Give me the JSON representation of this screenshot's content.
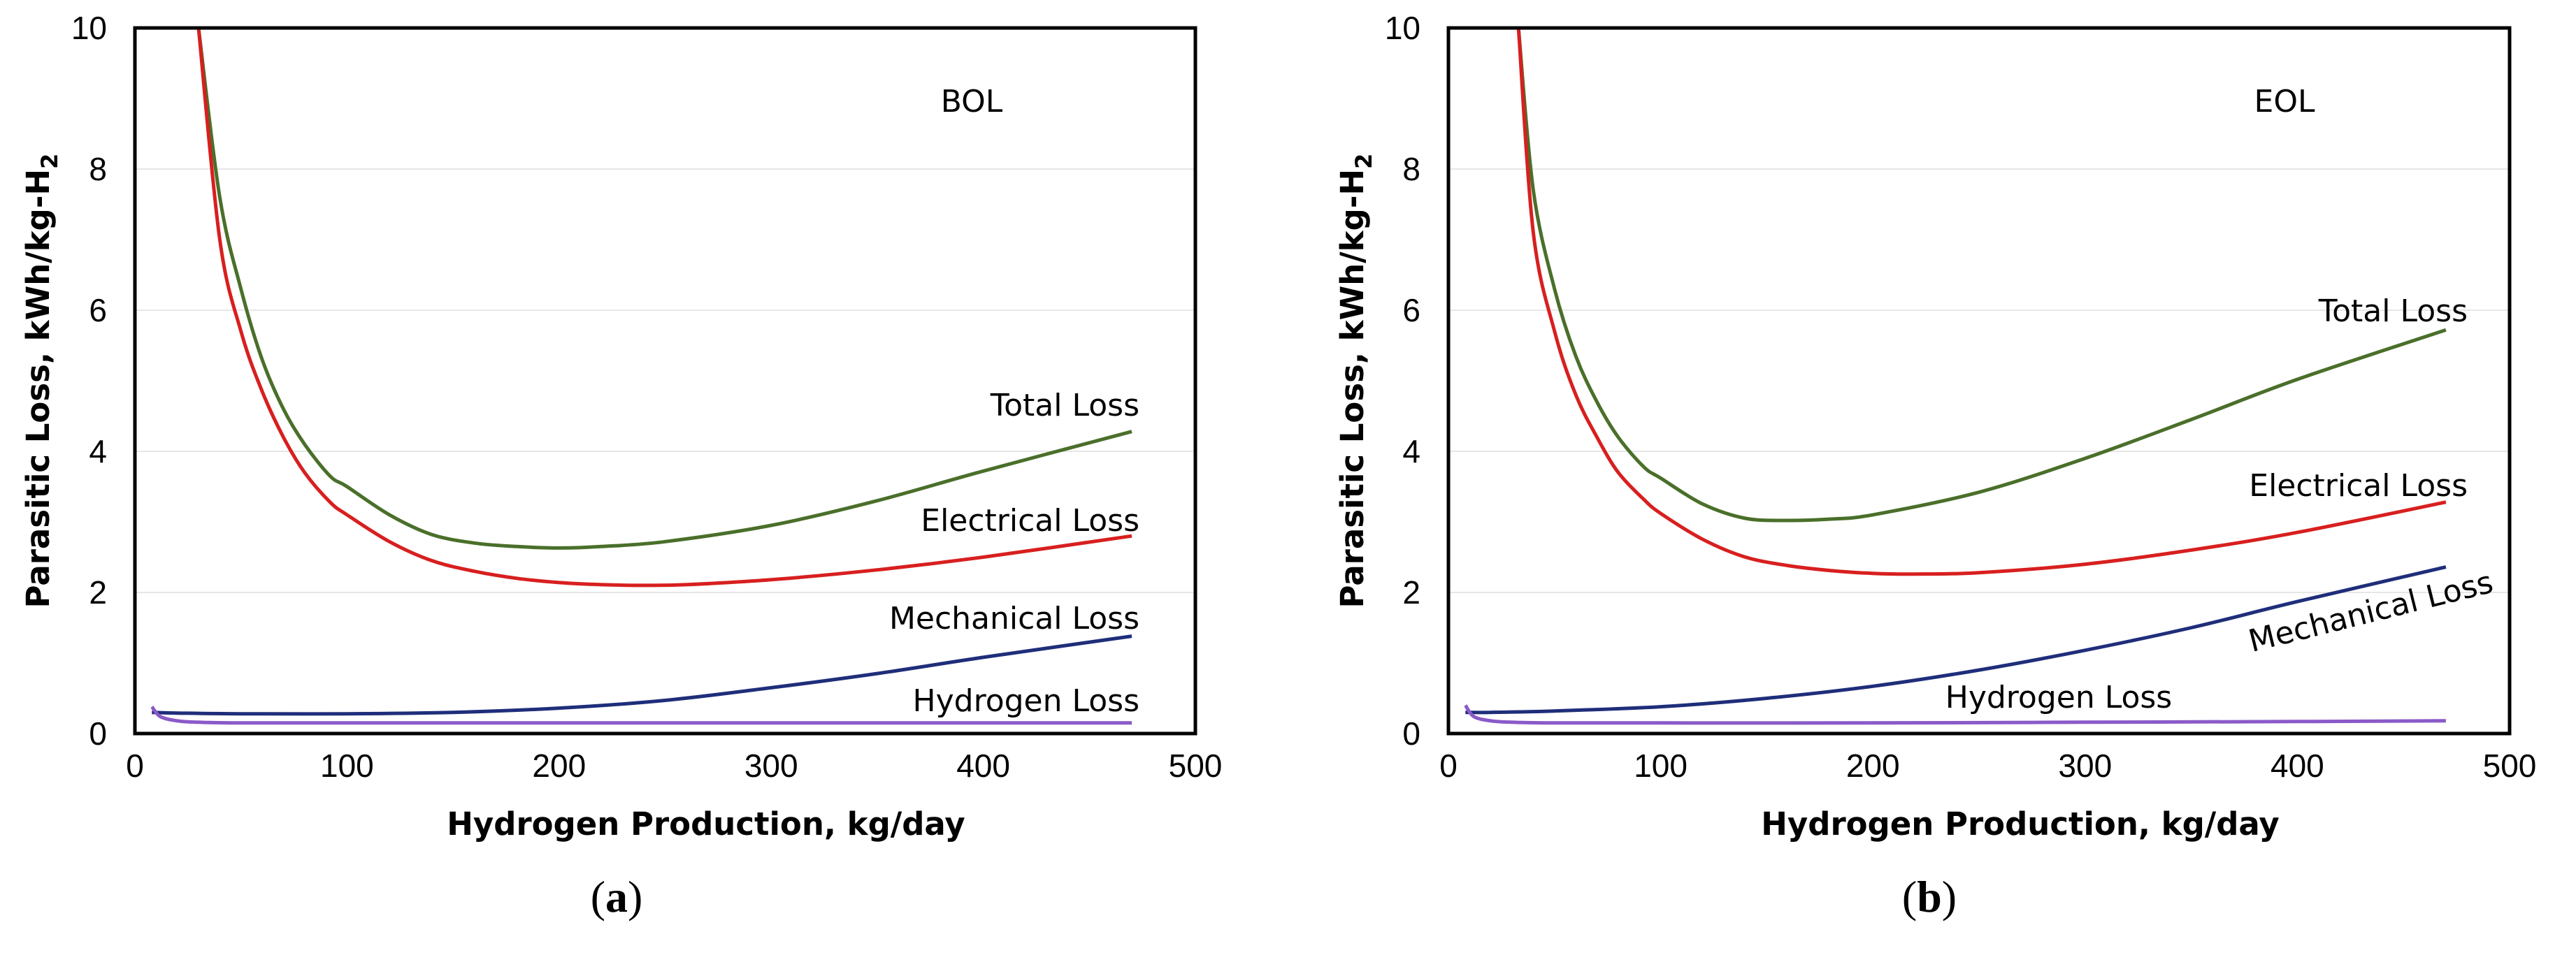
{
  "chart_data": [
    {
      "type": "line",
      "panel_label": "a",
      "stage_label": "BOL",
      "xlabel": "Hydrogen Production, kg/day",
      "ylabel": "Parasitic Loss, kWh/kg-H",
      "ylabel_subscript": "2",
      "xlim": [
        0,
        500
      ],
      "ylim": [
        0,
        10
      ],
      "xticks": [
        0,
        100,
        200,
        300,
        400,
        500
      ],
      "yticks": [
        0,
        2,
        4,
        6,
        8,
        10
      ],
      "grid": "horizontal",
      "series": [
        {
          "name": "Total Loss",
          "color": "#4a6f2a",
          "x": [
            30,
            40,
            50,
            60,
            70,
            80,
            92,
            100,
            120,
            140,
            160,
            180,
            200,
            220,
            250,
            300,
            350,
            400,
            470
          ],
          "y": [
            10.0,
            7.6,
            6.3,
            5.3,
            4.6,
            4.1,
            3.65,
            3.5,
            3.1,
            2.82,
            2.7,
            2.65,
            2.63,
            2.65,
            2.72,
            2.95,
            3.3,
            3.72,
            4.28
          ]
        },
        {
          "name": "Electrical Loss",
          "color": "#d81f1f",
          "x": [
            30,
            40,
            50,
            60,
            70,
            80,
            92,
            100,
            120,
            140,
            160,
            180,
            200,
            220,
            240,
            260,
            300,
            350,
            400,
            470
          ],
          "y": [
            10.0,
            7.0,
            5.7,
            4.85,
            4.2,
            3.7,
            3.28,
            3.1,
            2.72,
            2.45,
            2.3,
            2.2,
            2.14,
            2.11,
            2.1,
            2.11,
            2.18,
            2.32,
            2.5,
            2.8
          ]
        },
        {
          "name": "Mechanical Loss",
          "color": "#1f2e7a",
          "x": [
            8,
            20,
            50,
            100,
            150,
            200,
            250,
            300,
            350,
            400,
            470
          ],
          "y": [
            0.3,
            0.29,
            0.28,
            0.28,
            0.3,
            0.36,
            0.47,
            0.65,
            0.85,
            1.08,
            1.38
          ]
        },
        {
          "name": "Hydrogen Loss",
          "color": "#8a5ac8",
          "x": [
            8,
            12,
            20,
            30,
            50,
            100,
            200,
            300,
            400,
            470
          ],
          "y": [
            0.38,
            0.24,
            0.18,
            0.16,
            0.15,
            0.15,
            0.15,
            0.15,
            0.15,
            0.15
          ]
        }
      ],
      "annotations": [
        {
          "text": "Total Loss",
          "series": "Total Loss"
        },
        {
          "text": "Electrical Loss",
          "series": "Electrical Loss"
        },
        {
          "text": "Mechanical Loss",
          "series": "Mechanical Loss"
        },
        {
          "text": "Hydrogen Loss",
          "series": "Hydrogen Loss"
        }
      ]
    },
    {
      "type": "line",
      "panel_label": "b",
      "stage_label": "EOL",
      "xlabel": "Hydrogen Production, kg/day",
      "ylabel": "Parasitic Loss, kWh/kg-H",
      "ylabel_subscript": "2",
      "xlim": [
        0,
        500
      ],
      "ylim": [
        0,
        10
      ],
      "xticks": [
        0,
        100,
        200,
        300,
        400,
        500
      ],
      "yticks": [
        0,
        2,
        4,
        6,
        8,
        10
      ],
      "grid": "horizontal",
      "series": [
        {
          "name": "Total Loss",
          "color": "#4a6f2a",
          "x": [
            33,
            40,
            50,
            60,
            70,
            80,
            92,
            100,
            120,
            140,
            160,
            180,
            200,
            250,
            300,
            350,
            400,
            470
          ],
          "y": [
            10.0,
            7.7,
            6.3,
            5.35,
            4.7,
            4.2,
            3.78,
            3.62,
            3.25,
            3.05,
            3.02,
            3.04,
            3.1,
            3.42,
            3.9,
            4.45,
            5.02,
            5.72
          ]
        },
        {
          "name": "Electrical Loss",
          "color": "#d81f1f",
          "x": [
            33,
            40,
            50,
            60,
            70,
            80,
            92,
            100,
            120,
            140,
            160,
            180,
            200,
            220,
            250,
            300,
            350,
            400,
            470
          ],
          "y": [
            10.0,
            7.1,
            5.7,
            4.8,
            4.2,
            3.7,
            3.32,
            3.12,
            2.75,
            2.5,
            2.38,
            2.31,
            2.27,
            2.26,
            2.28,
            2.4,
            2.6,
            2.85,
            3.28
          ]
        },
        {
          "name": "Mechanical Loss",
          "color": "#1f2e7a",
          "x": [
            8,
            20,
            50,
            100,
            150,
            200,
            250,
            300,
            350,
            400,
            470
          ],
          "y": [
            0.3,
            0.3,
            0.32,
            0.38,
            0.5,
            0.67,
            0.9,
            1.18,
            1.5,
            1.87,
            2.36
          ]
        },
        {
          "name": "Hydrogen Loss",
          "color": "#8a5ac8",
          "x": [
            8,
            12,
            20,
            30,
            50,
            100,
            200,
            300,
            400,
            470
          ],
          "y": [
            0.4,
            0.24,
            0.18,
            0.16,
            0.15,
            0.15,
            0.15,
            0.16,
            0.17,
            0.18
          ]
        }
      ],
      "annotations": [
        {
          "text": "Total Loss",
          "series": "Total Loss"
        },
        {
          "text": "Electrical Loss",
          "series": "Electrical Loss"
        },
        {
          "text": "Mechanical Loss",
          "series": "Mechanical Loss"
        },
        {
          "text": "Hydrogen Loss",
          "series": "Hydrogen Loss"
        }
      ]
    }
  ]
}
